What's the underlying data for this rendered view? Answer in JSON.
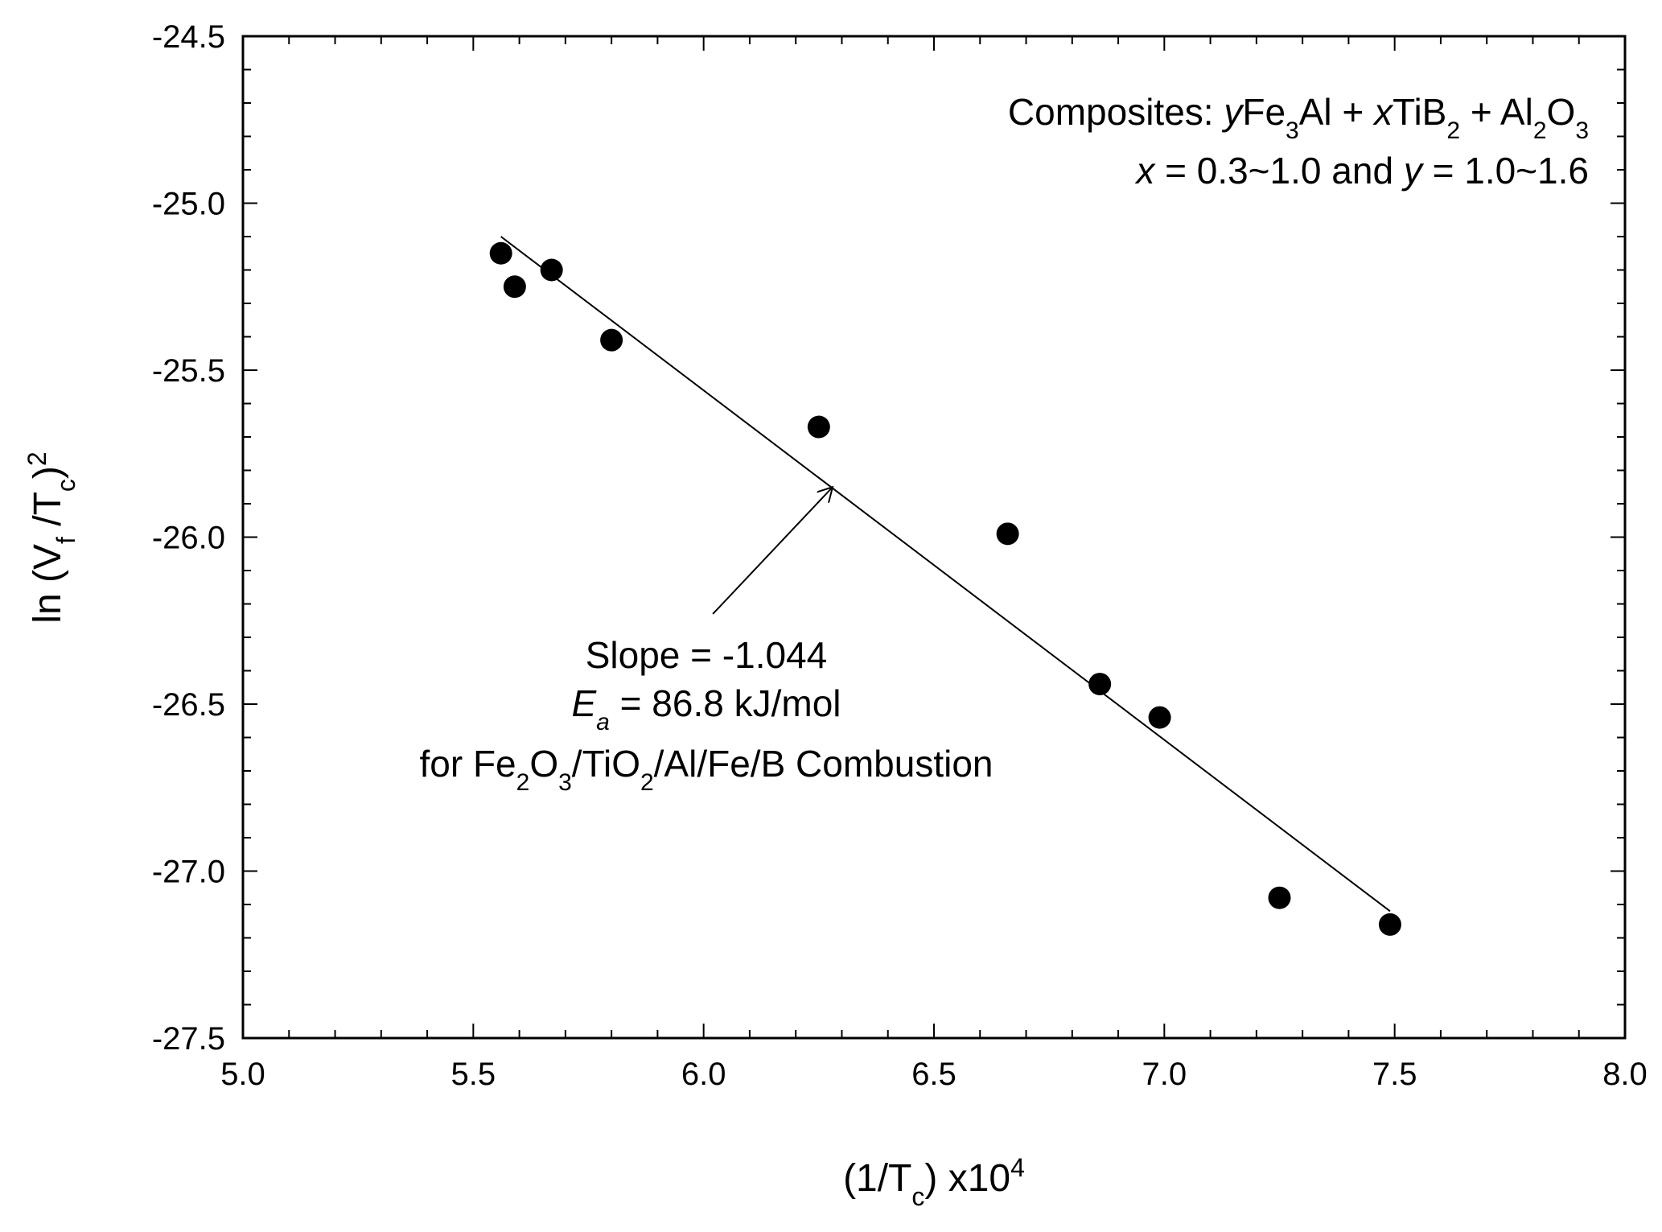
{
  "chart_data": {
    "type": "scatter",
    "xlabel": {
      "main": "(1/T",
      "sub": "c",
      "rest": ") x10",
      "sup": "4"
    },
    "ylabel": {
      "a": "ln (V",
      "sub1": "f",
      "b": " /T",
      "sub2": "c",
      "c": ")",
      "sup": "2"
    },
    "xlim": [
      5.0,
      8.0
    ],
    "ylim": [
      -27.5,
      -24.5
    ],
    "x_ticks": [
      5.0,
      5.5,
      6.0,
      6.5,
      7.0,
      7.5,
      8.0
    ],
    "x_tick_labels": [
      "5.0",
      "5.5",
      "6.0",
      "6.5",
      "7.0",
      "7.5",
      "8.0"
    ],
    "y_ticks": [
      -24.5,
      -25.0,
      -25.5,
      -26.0,
      -26.5,
      -27.0,
      -27.5
    ],
    "y_tick_labels": [
      "-24.5",
      "-25.0",
      "-25.5",
      "-26.0",
      "-26.5",
      "-27.0",
      "-27.5"
    ],
    "x_minor_step": 0.1,
    "y_minor_step": 0.1,
    "grid": false,
    "points": [
      {
        "x": 5.56,
        "y": -25.15
      },
      {
        "x": 5.59,
        "y": -25.25
      },
      {
        "x": 5.67,
        "y": -25.2
      },
      {
        "x": 5.8,
        "y": -25.41
      },
      {
        "x": 6.25,
        "y": -25.67
      },
      {
        "x": 6.66,
        "y": -25.99
      },
      {
        "x": 6.86,
        "y": -26.44
      },
      {
        "x": 6.99,
        "y": -26.54
      },
      {
        "x": 7.25,
        "y": -27.08
      },
      {
        "x": 7.49,
        "y": -27.16
      }
    ],
    "fit_line": {
      "x": [
        5.56,
        7.49
      ],
      "y": [
        -25.1,
        -27.12
      ]
    },
    "arrow": {
      "from": {
        "x": 6.02,
        "y": -26.23
      },
      "to": {
        "x": 6.28,
        "y": -25.85
      }
    },
    "composites_annotation": {
      "line1": {
        "prefix": "Composites: ",
        "y_var": "y",
        "fe": "Fe",
        "fe_sub": "3",
        "al_plus": "Al + ",
        "x_var": "x",
        "tib": "TiB",
        "tib_sub": "2",
        "plus_al": " + Al",
        "al_sub": "2",
        "o": "O",
        "o_sub": "3"
      },
      "line2": {
        "x_var": "x",
        "x_range": " = 0.3~1.0 and ",
        "y_var": "y",
        "y_range": " = 1.0~1.6"
      }
    },
    "slope_annotation": {
      "line1": "Slope = -1.044",
      "line2": {
        "E": "E",
        "sub": "a",
        "rest": " = 86.8 kJ/mol"
      },
      "line3": {
        "a": "for Fe",
        "s1": "2",
        "b": "O",
        "s2": "3",
        "c": "/TiO",
        "s3": "2",
        "d": "/Al/Fe/B Combustion"
      }
    }
  }
}
